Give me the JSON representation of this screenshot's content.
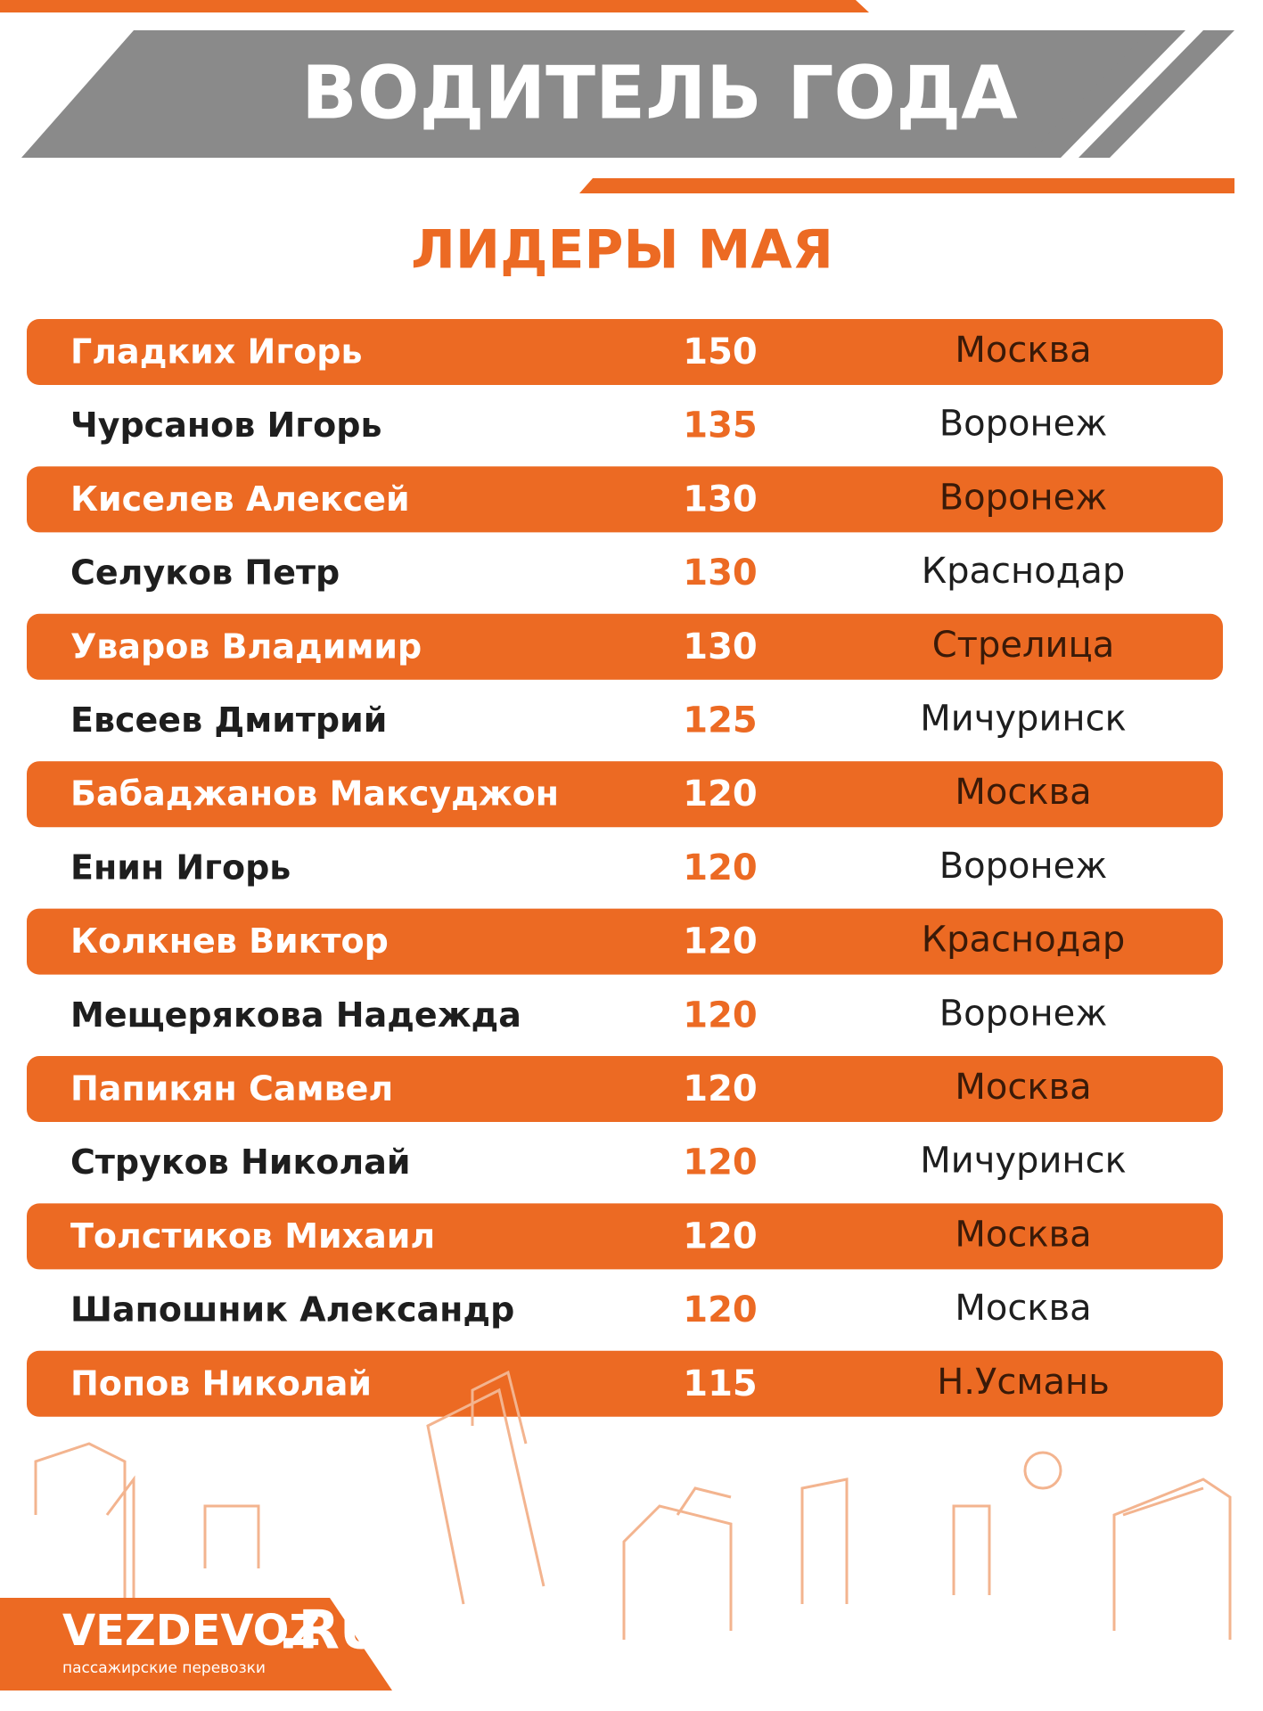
{
  "header": {
    "title": "ВОДИТЕЛЬ ГОДА",
    "subtitle": "ЛИДЕРЫ МАЯ"
  },
  "table": {
    "rows": [
      [
        "Гладких Игорь",
        150,
        "Москва"
      ],
      [
        "Чурсанов Игорь",
        135,
        "Воронеж"
      ],
      [
        "Киселев Алексей",
        130,
        "Воронеж"
      ],
      [
        "Селуков Петр",
        130,
        "Краснодар"
      ],
      [
        "Уваров Владимир",
        130,
        "Стрелица"
      ],
      [
        "Евсеев Дмитрий",
        125,
        "Мичуринск"
      ],
      [
        "Бабаджанов Максуджон",
        120,
        "Москва"
      ],
      [
        "Енин Игорь",
        120,
        "Воронеж"
      ],
      [
        "Колкнев Виктор",
        120,
        "Краснодар"
      ],
      [
        "Мещерякова Надежда",
        120,
        "Воронеж"
      ],
      [
        "Папикян Самвел",
        120,
        "Москва"
      ],
      [
        "Струков Николай",
        120,
        "Мичуринск"
      ],
      [
        "Толстиков Михаил",
        120,
        "Москва"
      ],
      [
        "Шапошник Александр",
        120,
        "Москва"
      ],
      [
        "Попов Николай",
        115,
        "Н.Усмань"
      ]
    ]
  },
  "logo": {
    "name": "VEZDEVOZ",
    "domain": ".RU",
    "tagline": "пассажирские перевозки"
  }
}
